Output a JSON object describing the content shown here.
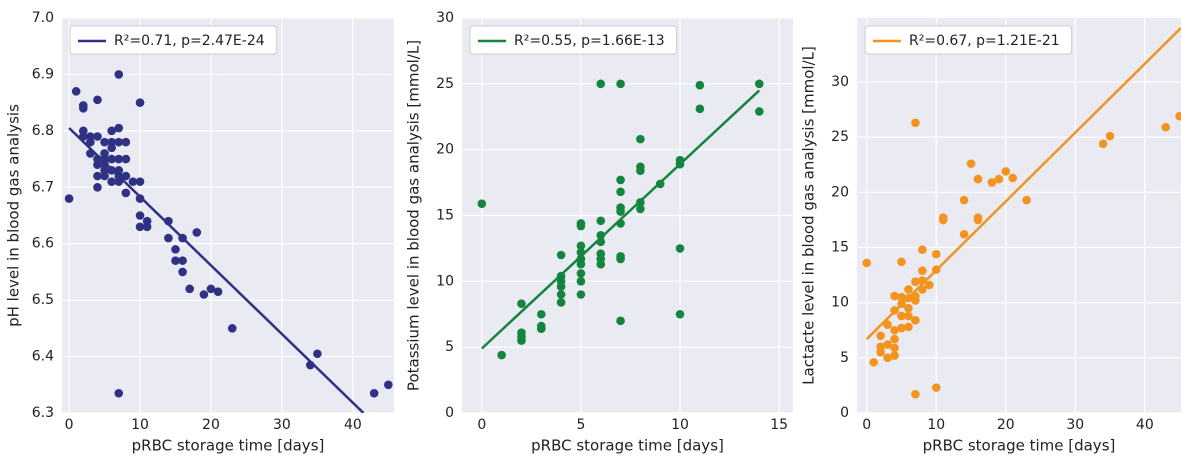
{
  "chart_data": [
    {
      "type": "scatter",
      "xlabel": "pRBC storage time [days]",
      "ylabel": "pH level in blood gas analysis",
      "xlim": [
        -1,
        45.8
      ],
      "ylim": [
        6.3,
        7.0
      ],
      "xticks": [
        0,
        10,
        20,
        30,
        40
      ],
      "yticks": [
        6.3,
        6.4,
        6.5,
        6.6,
        6.7,
        6.8,
        6.9,
        {
          "value": 7.0,
          "label": "7.0"
        }
      ],
      "grid": true,
      "legend": "upper left",
      "series": [
        {
          "name": "R²=0.71, p=2.47E-24",
          "type": "line",
          "color": "#2e3184",
          "x": [
            0,
            41.5
          ],
          "values": [
            6.805,
            6.3
          ]
        },
        {
          "type": "scatter",
          "color": "#2e3184",
          "x": [
            0,
            1,
            2,
            2,
            2,
            2,
            3,
            3,
            3,
            4,
            4,
            4,
            4,
            4,
            4,
            5,
            5,
            5,
            5,
            5,
            5,
            6,
            6,
            6,
            6,
            6,
            6,
            7,
            7,
            7,
            7,
            7,
            7,
            7,
            7,
            8,
            8,
            8,
            8,
            9,
            10,
            10,
            10,
            10,
            10,
            11,
            11,
            14,
            14,
            15,
            15,
            16,
            16,
            16,
            17,
            18,
            19,
            20,
            21,
            23,
            34,
            35,
            43,
            45
          ],
          "values": [
            6.68,
            6.87,
            6.84,
            6.845,
            6.8,
            6.79,
            6.79,
            6.78,
            6.76,
            6.855,
            6.79,
            6.75,
            6.74,
            6.7,
            6.72,
            6.78,
            6.76,
            6.75,
            6.73,
            6.72,
            6.74,
            6.78,
            6.77,
            6.75,
            6.71,
            6.73,
            6.8,
            6.9,
            6.805,
            6.78,
            6.75,
            6.73,
            6.71,
            6.72,
            6.335,
            6.78,
            6.75,
            6.72,
            6.69,
            6.71,
            6.85,
            6.71,
            6.68,
            6.65,
            6.63,
            6.63,
            6.64,
            6.64,
            6.61,
            6.59,
            6.57,
            6.57,
            6.55,
            6.61,
            6.52,
            6.62,
            6.51,
            6.52,
            6.515,
            6.45,
            6.385,
            6.405,
            6.335,
            6.35
          ]
        }
      ]
    },
    {
      "type": "scatter",
      "xlabel": "pRBC storage time [days]",
      "ylabel": "Potassium level in blood gas analysis [mmol/L]",
      "xlim": [
        -1,
        15.7
      ],
      "ylim": [
        0,
        30
      ],
      "xticks": [
        0,
        5,
        10,
        15
      ],
      "yticks": [
        0,
        5,
        10,
        15,
        20,
        25,
        30
      ],
      "grid": true,
      "legend": "upper left",
      "series": [
        {
          "name": "R²=0.55, p=1.66E-13",
          "type": "line",
          "color": "#14853f",
          "x": [
            0,
            14
          ],
          "values": [
            4.9,
            24.5
          ]
        },
        {
          "type": "scatter",
          "color": "#14853f",
          "x": [
            0,
            1,
            2,
            2,
            2,
            2,
            3,
            3,
            3,
            4,
            4,
            4,
            4,
            4,
            4,
            5,
            5,
            5,
            5,
            5,
            5,
            5,
            5,
            5,
            6,
            6,
            6,
            6,
            6,
            6,
            6,
            7,
            7,
            7,
            7,
            7,
            7,
            7,
            7,
            7,
            8,
            8,
            8,
            8,
            8,
            9,
            10,
            10,
            10,
            10,
            11,
            11,
            14,
            14
          ],
          "values": [
            15.9,
            4.4,
            8.3,
            6.1,
            5.8,
            5.5,
            7.5,
            6.6,
            6.4,
            12.0,
            10.4,
            10.0,
            9.6,
            9.0,
            8.4,
            14.4,
            14.2,
            12.7,
            12.2,
            11.7,
            11.3,
            10.6,
            10.0,
            9.0,
            25.0,
            14.6,
            13.5,
            13.0,
            12.1,
            11.7,
            11.3,
            25.0,
            17.7,
            16.8,
            15.6,
            15.3,
            14.4,
            11.9,
            11.7,
            7.0,
            20.8,
            18.7,
            18.4,
            16.0,
            15.5,
            17.4,
            19.2,
            18.9,
            12.5,
            7.5,
            24.9,
            23.1,
            25.0,
            22.9
          ]
        }
      ]
    },
    {
      "type": "scatter",
      "xlabel": "pRBC storage time [days]",
      "ylabel": "Lactacte level in blood gas analysis [mmol/L]",
      "xlim": [
        -1.4,
        45.2
      ],
      "ylim": [
        0,
        35.8
      ],
      "xticks": [
        0,
        10,
        20,
        30,
        40
      ],
      "yticks": [
        0,
        5,
        10,
        15,
        20,
        25,
        30
      ],
      "grid": true,
      "legend": "upper left",
      "series": [
        {
          "name": "R²=0.67, p=1.21E-21",
          "type": "line",
          "color": "#f2941f",
          "x": [
            0,
            45.2
          ],
          "values": [
            6.7,
            34.9
          ]
        },
        {
          "type": "scatter",
          "color": "#f2941f",
          "x": [
            0,
            1,
            2,
            2,
            2,
            3,
            3,
            3,
            4,
            4,
            4,
            4,
            4,
            4,
            5,
            5,
            5,
            5,
            5,
            6,
            6,
            6,
            6,
            6,
            7,
            7,
            7,
            7,
            7,
            7,
            8,
            8,
            8,
            8,
            9,
            10,
            10,
            10,
            11,
            11,
            14,
            14,
            15,
            16,
            16,
            16,
            18,
            19,
            20,
            21,
            23,
            34,
            35,
            43,
            45
          ],
          "values": [
            13.6,
            4.6,
            7.0,
            6.0,
            5.5,
            6.2,
            5.0,
            8.0,
            10.6,
            9.3,
            7.5,
            6.7,
            5.9,
            5.2,
            13.7,
            10.5,
            9.9,
            8.8,
            7.7,
            11.2,
            10.4,
            9.5,
            8.8,
            7.8,
            26.3,
            11.9,
            10.6,
            10.2,
            8.4,
            1.7,
            14.8,
            12.9,
            12.0,
            11.2,
            11.6,
            14.4,
            13.0,
            2.3,
            17.7,
            17.5,
            19.3,
            16.2,
            22.6,
            17.5,
            17.7,
            21.2,
            20.9,
            21.2,
            21.9,
            21.3,
            19.3,
            24.4,
            25.1,
            25.9,
            26.9
          ]
        }
      ]
    }
  ]
}
